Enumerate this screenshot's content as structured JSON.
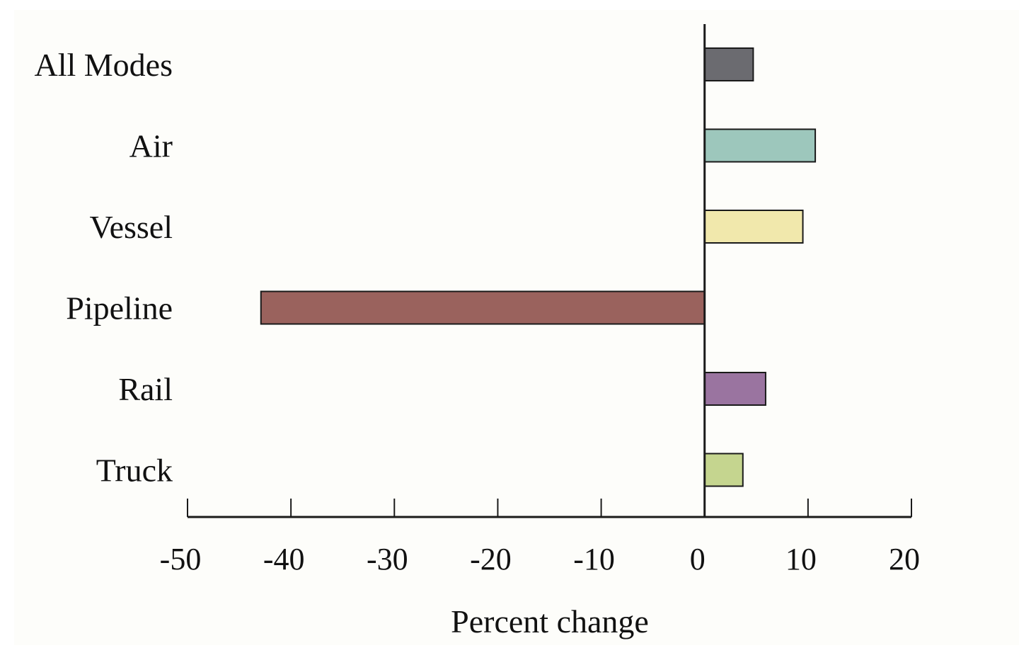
{
  "chart_data": {
    "type": "bar",
    "orientation": "horizontal",
    "categories": [
      "All Modes",
      "Air",
      "Vessel",
      "Pipeline",
      "Rail",
      "Truck"
    ],
    "values": [
      4.7,
      10.7,
      9.5,
      -42.9,
      5.9,
      3.7
    ],
    "colors": [
      "#6b6b70",
      "#9dc7bc",
      "#f1e8ac",
      "#9a625d",
      "#9a74a0",
      "#c5d58f"
    ],
    "xlabel": "Percent change",
    "ylabel": "",
    "xlim": [
      -50,
      20
    ],
    "xticks": [
      -50,
      -40,
      -30,
      -20,
      -10,
      0,
      10,
      20
    ],
    "xtick_labels": [
      "-50",
      "-40",
      "-30",
      "-20",
      "-10",
      "0",
      "10",
      "20"
    ],
    "grid": false,
    "legend": "none"
  }
}
